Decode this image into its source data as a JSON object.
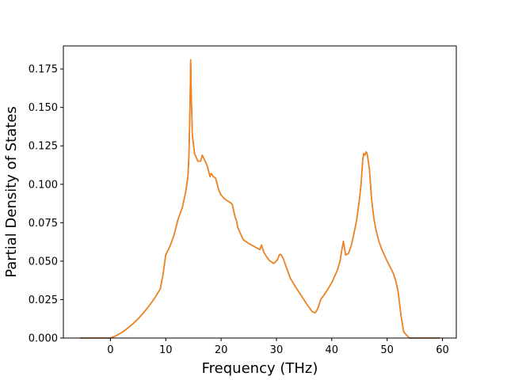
{
  "chart_data": {
    "type": "line",
    "title": "",
    "xlabel": "Frequency (THz)",
    "ylabel": "Partial Density of States",
    "xlim": [
      -8.5,
      62.5
    ],
    "ylim": [
      0.0,
      0.19
    ],
    "xticks": [
      0,
      10,
      20,
      30,
      40,
      50,
      60
    ],
    "yticks": [
      0.0,
      0.025,
      0.05,
      0.075,
      0.1,
      0.125,
      0.15,
      0.175
    ],
    "xtick_labels": [
      "0",
      "10",
      "20",
      "30",
      "40",
      "50",
      "60"
    ],
    "ytick_labels": [
      "0.000",
      "0.025",
      "0.050",
      "0.075",
      "0.100",
      "0.125",
      "0.150",
      "0.175"
    ],
    "grid": false,
    "legend": "none",
    "series_colors": [
      "#1f77b4",
      "#ff7f0e"
    ],
    "series": [
      {
        "x": [
          -5.5,
          -2,
          0,
          1,
          2,
          3,
          4,
          5,
          6,
          7,
          8,
          9,
          9.5,
          10,
          10.8,
          11.5,
          12.2,
          13,
          13.6,
          14,
          14.2,
          14.4,
          14.5,
          14.6,
          14.8,
          15.2,
          15.8,
          16.3,
          16.6,
          17,
          17.5,
          18,
          18.2,
          18.6,
          19,
          19.6,
          20,
          20.5,
          21,
          21.5,
          22,
          22.5,
          22.8,
          23,
          23.5,
          24,
          25,
          26,
          27,
          27.3,
          27.7,
          28.2,
          28.7,
          29.5,
          30.2,
          30.5,
          30.8,
          31.2,
          31.6,
          32,
          32.5,
          33.5,
          34.5,
          35.5,
          36.5,
          37,
          37.3,
          37.6,
          38,
          39,
          40,
          41,
          41.5,
          41.8,
          42.1,
          42.5,
          43,
          43.5,
          44,
          44.5,
          45,
          45.3,
          45.6,
          45.8,
          46,
          46.2,
          46.4,
          46.8,
          47.2,
          47.6,
          48,
          48.5,
          49,
          50,
          51,
          51.5,
          52,
          52.5,
          53,
          53.5,
          54,
          55,
          57,
          59.5
        ],
        "y": [
          0.0,
          0.0,
          0.0,
          0.0015,
          0.0035,
          0.006,
          0.009,
          0.0125,
          0.0165,
          0.021,
          0.026,
          0.032,
          0.041,
          0.054,
          0.06,
          0.067,
          0.077,
          0.085,
          0.095,
          0.105,
          0.12,
          0.155,
          0.181,
          0.16,
          0.132,
          0.12,
          0.115,
          0.115,
          0.119,
          0.116,
          0.112,
          0.105,
          0.107,
          0.105,
          0.104,
          0.096,
          0.093,
          0.091,
          0.0895,
          0.0885,
          0.087,
          0.079,
          0.076,
          0.072,
          0.068,
          0.064,
          0.0615,
          0.0595,
          0.0575,
          0.0605,
          0.056,
          0.053,
          0.0505,
          0.0485,
          0.051,
          0.054,
          0.0545,
          0.052,
          0.048,
          0.044,
          0.039,
          0.033,
          0.0275,
          0.022,
          0.017,
          0.0165,
          0.018,
          0.0205,
          0.025,
          0.03,
          0.036,
          0.044,
          0.05,
          0.057,
          0.063,
          0.054,
          0.055,
          0.06,
          0.068,
          0.077,
          0.09,
          0.1,
          0.116,
          0.12,
          0.119,
          0.121,
          0.12,
          0.11,
          0.09,
          0.078,
          0.07,
          0.063,
          0.058,
          0.05,
          0.043,
          0.038,
          0.03,
          0.015,
          0.004,
          0.002,
          0.0,
          0.0,
          0.0,
          0.0
        ]
      },
      {
        "x": [
          -5.5,
          -2,
          0,
          1,
          2,
          3,
          4,
          5,
          6,
          7,
          8,
          9,
          9.5,
          10,
          10.8,
          11.5,
          12.2,
          13,
          13.6,
          14,
          14.2,
          14.4,
          14.5,
          14.6,
          14.8,
          15.2,
          15.8,
          16.3,
          16.6,
          17,
          17.5,
          18,
          18.2,
          18.6,
          19,
          19.6,
          20,
          20.5,
          21,
          21.5,
          22,
          22.5,
          22.8,
          23,
          23.5,
          24,
          25,
          26,
          27,
          27.3,
          27.7,
          28.2,
          28.7,
          29.5,
          30.2,
          30.5,
          30.8,
          31.2,
          31.6,
          32,
          32.5,
          33.5,
          34.5,
          35.5,
          36.5,
          37,
          37.3,
          37.6,
          38,
          39,
          40,
          41,
          41.5,
          41.8,
          42.1,
          42.5,
          43,
          43.5,
          44,
          44.5,
          45,
          45.3,
          45.6,
          45.8,
          46,
          46.2,
          46.4,
          46.8,
          47.2,
          47.6,
          48,
          48.5,
          49,
          50,
          51,
          51.5,
          52,
          52.5,
          53,
          53.5,
          54,
          55,
          57,
          59.5
        ],
        "y": [
          0.0,
          0.0,
          0.0,
          0.0015,
          0.0035,
          0.006,
          0.009,
          0.0125,
          0.0165,
          0.021,
          0.026,
          0.032,
          0.041,
          0.054,
          0.06,
          0.067,
          0.077,
          0.085,
          0.095,
          0.105,
          0.12,
          0.155,
          0.181,
          0.16,
          0.132,
          0.12,
          0.115,
          0.115,
          0.119,
          0.116,
          0.112,
          0.105,
          0.107,
          0.105,
          0.104,
          0.096,
          0.093,
          0.091,
          0.0895,
          0.0885,
          0.087,
          0.079,
          0.076,
          0.072,
          0.068,
          0.064,
          0.0615,
          0.0595,
          0.0575,
          0.0605,
          0.056,
          0.053,
          0.0505,
          0.0485,
          0.051,
          0.054,
          0.0545,
          0.052,
          0.048,
          0.044,
          0.039,
          0.033,
          0.0275,
          0.022,
          0.017,
          0.0165,
          0.018,
          0.0205,
          0.025,
          0.03,
          0.036,
          0.044,
          0.05,
          0.057,
          0.063,
          0.054,
          0.055,
          0.06,
          0.068,
          0.077,
          0.09,
          0.1,
          0.116,
          0.12,
          0.119,
          0.121,
          0.12,
          0.11,
          0.09,
          0.078,
          0.07,
          0.063,
          0.058,
          0.05,
          0.043,
          0.038,
          0.03,
          0.015,
          0.004,
          0.002,
          0.0,
          0.0,
          0.0,
          0.0
        ]
      }
    ]
  }
}
